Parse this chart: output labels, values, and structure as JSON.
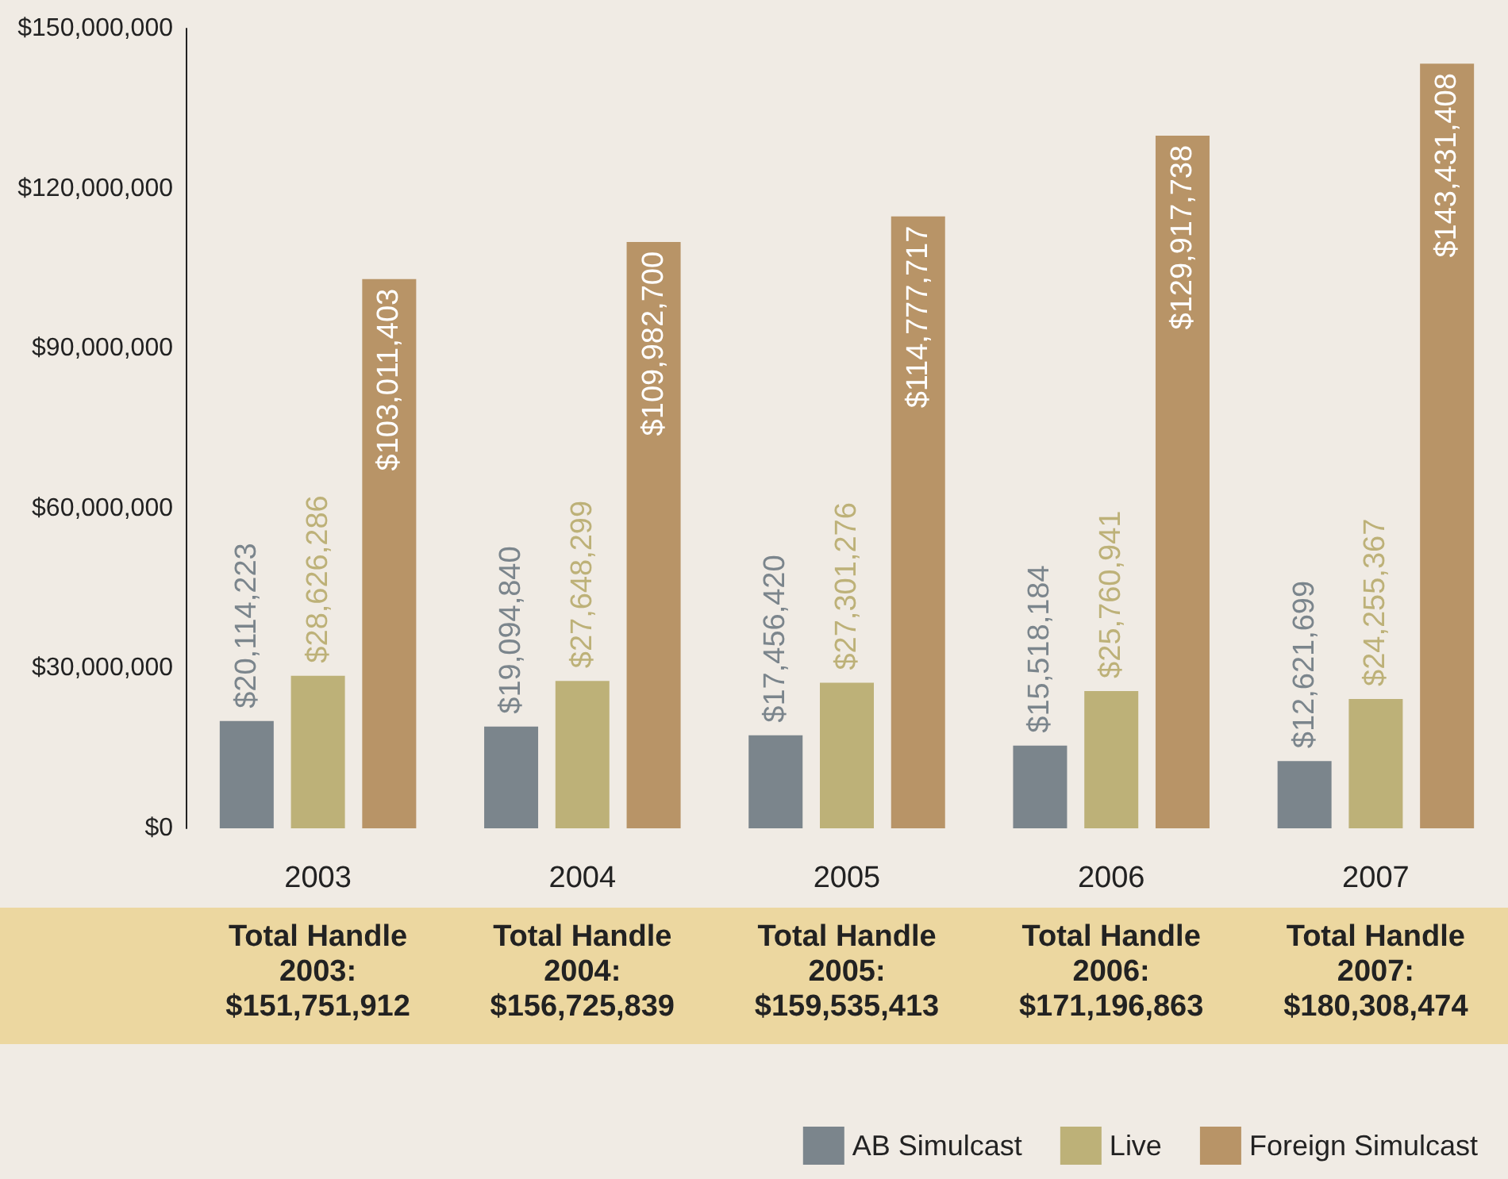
{
  "chart_data": {
    "type": "bar",
    "categories": [
      "2003",
      "2004",
      "2005",
      "2006",
      "2007"
    ],
    "series": [
      {
        "name": "AB Simulcast",
        "color": "#7b858c",
        "values": [
          20114223,
          19094840,
          17456420,
          15518184,
          12621699
        ],
        "value_labels": [
          "$20,114,223",
          "$19,094,840",
          "$17,456,420",
          "$15,518,184",
          "$12,621,699"
        ]
      },
      {
        "name": "Live",
        "color": "#bdb178",
        "values": [
          28626286,
          27648299,
          27301276,
          25760941,
          24255367
        ],
        "value_labels": [
          "$28,626,286",
          "$27,648,299",
          "$27,301,276",
          "$25,760,941",
          "$24,255,367"
        ]
      },
      {
        "name": "Foreign Simulcast",
        "color": "#b89467",
        "values": [
          103011403,
          109982700,
          114777717,
          129917738,
          143431408
        ],
        "value_labels": [
          "$103,011,403",
          "$109,982,700",
          "$114,777,717",
          "$129,917,738",
          "$143,431,408"
        ]
      }
    ],
    "ylim": [
      0,
      150000000
    ],
    "yticks": [
      {
        "value": 0,
        "label": "$0"
      },
      {
        "value": 30000000,
        "label": "$30,000,000"
      },
      {
        "value": 60000000,
        "label": "$60,000,000"
      },
      {
        "value": 90000000,
        "label": "$90,000,000"
      },
      {
        "value": 120000000,
        "label": "$120,000,000"
      },
      {
        "value": 150000000,
        "label": "$150,000,000"
      }
    ],
    "annotations": [
      "Total Handle 2003: $151,751,912",
      "Total Handle 2004: $156,725,839",
      "Total Handle 2005: $159,535,413",
      "Total Handle 2006: $171,196,863",
      "Total Handle 2007: $180,308,474"
    ],
    "grid": false,
    "legend": "bottom right"
  }
}
